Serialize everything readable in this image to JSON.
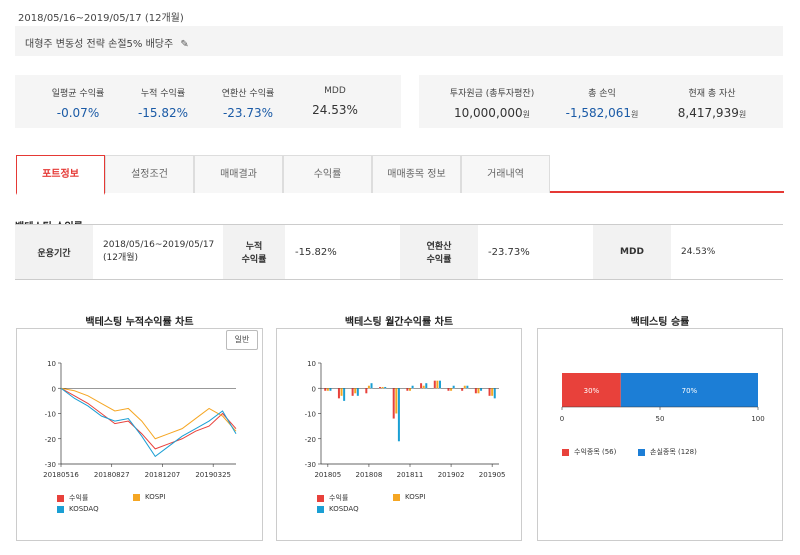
{
  "header": {
    "period": "2018/05/16~2019/05/17 (12개월)",
    "strategy": "대형주 변동성 전략 손절5% 배당주"
  },
  "stats_left": [
    {
      "label": "일평균 수익률",
      "value": "-0.07%",
      "color": "blue"
    },
    {
      "label": "누적 수익률",
      "value": "-15.82%",
      "color": "blue"
    },
    {
      "label": "연환산 수익률",
      "value": "-23.73%",
      "color": "blue"
    },
    {
      "label": "MDD",
      "value": "24.53%",
      "color": "black"
    }
  ],
  "stats_right": [
    {
      "label": "투자원금 (총투자평잔)",
      "value": "10,000,000",
      "unit": "원",
      "color": "black"
    },
    {
      "label": "총 손익",
      "value": "-1,582,061",
      "unit": "원",
      "color": "blue"
    },
    {
      "label": "현재 총 자산",
      "value": "8,417,939",
      "unit": "원",
      "color": "black"
    }
  ],
  "tabs": [
    "포트정보",
    "설정조건",
    "매매결과",
    "수익률",
    "매매종목 정보",
    "거래내역"
  ],
  "active_tab": 0,
  "section_title": "백테스팅 수익률",
  "perf": {
    "period_label": "운용기간",
    "period_value1": "2018/05/16~2019/05/17",
    "period_value2": "(12개월)",
    "cum_label1": "누적",
    "cum_label2": "수익률",
    "cum_value": "-15.82%",
    "ann_label1": "연환산",
    "ann_label2": "수익률",
    "ann_value": "-23.73%",
    "mdd_label": "MDD",
    "mdd_value": "24.53%"
  },
  "charts": {
    "cum_title": "백테스팅 누적수익률 차트",
    "mon_title": "백테스팅 월간수익률 차트",
    "win_title": "백테스팅 승률",
    "basic_button": "일반"
  },
  "chart_data": [
    {
      "type": "line",
      "title": "백테스팅 누적수익률 차트",
      "ylim": [
        -30,
        10
      ],
      "yticks": [
        "10",
        "0",
        "-10",
        "-20",
        "-30"
      ],
      "xticks": [
        "20180516",
        "20180827",
        "20181207",
        "20190325"
      ],
      "series": [
        {
          "name": "수익률",
          "color": "#e8413b",
          "values": [
            0,
            -3,
            -6,
            -10,
            -14,
            -13,
            -18,
            -24,
            -22,
            -20,
            -17,
            -15,
            -10,
            -16
          ]
        },
        {
          "name": "KOSPI",
          "color": "#f5a623",
          "values": [
            0,
            -1,
            -3,
            -6,
            -9,
            -8,
            -13,
            -20,
            -18,
            -16,
            -12,
            -8,
            -11,
            -17
          ]
        },
        {
          "name": "KOSDAQ",
          "color": "#1a9fd4",
          "values": [
            0,
            -4,
            -7,
            -11,
            -13,
            -12,
            -19,
            -27,
            -23,
            -19,
            -16,
            -13,
            -9,
            -18
          ]
        }
      ]
    },
    {
      "type": "bar",
      "title": "백테스팅 월간수익률 차트",
      "ylim": [
        -30,
        10
      ],
      "yticks": [
        "10",
        "0",
        "-10",
        "-20",
        "-30"
      ],
      "xticks": [
        "201805",
        "201808",
        "201811",
        "201902",
        "201905"
      ],
      "categories": [
        "201805",
        "201806",
        "201807",
        "201808",
        "201809",
        "201810",
        "201811",
        "201812",
        "201901",
        "201902",
        "201903",
        "201904",
        "201905"
      ],
      "series": [
        {
          "name": "수익률",
          "color": "#e8413b",
          "values": [
            -1,
            -4,
            -3,
            -2,
            0.5,
            -12,
            -1,
            2,
            3,
            -1,
            -1,
            -2,
            -3
          ]
        },
        {
          "name": "KOSPI",
          "color": "#f5a623",
          "values": [
            -1,
            -3,
            -2,
            1,
            0.5,
            -10,
            -1,
            1,
            3,
            -1,
            1,
            -2,
            -3
          ]
        },
        {
          "name": "KOSDAQ",
          "color": "#1a9fd4",
          "values": [
            -1,
            -5,
            -3,
            2,
            0.5,
            -21,
            1,
            2,
            3,
            1,
            1,
            -1,
            -4
          ]
        }
      ]
    },
    {
      "type": "bar",
      "title": "백테스팅 승률",
      "orientation": "stacked-horizontal",
      "xlim": [
        0,
        100
      ],
      "xticks": [
        "0",
        "50",
        "100"
      ],
      "series": [
        {
          "name": "수익종목 (56)",
          "color": "#e8413b",
          "value": 30,
          "label": "30%"
        },
        {
          "name": "손실종목 (128)",
          "color": "#1c7ed6",
          "value": 70,
          "label": "70%"
        }
      ]
    }
  ]
}
